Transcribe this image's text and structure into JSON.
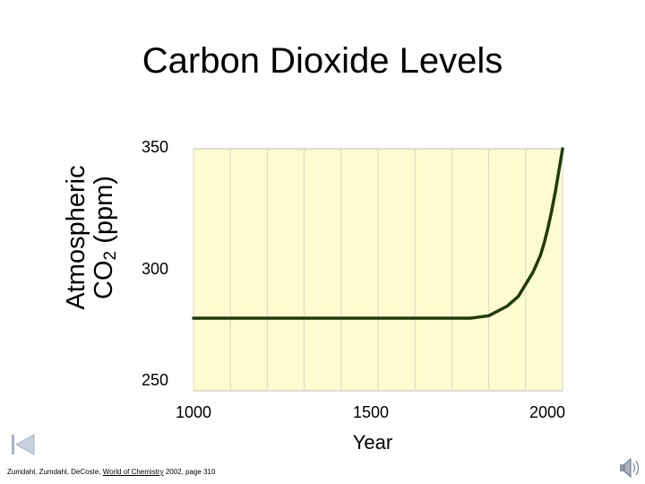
{
  "slide": {
    "title": "Carbon Dioxide Levels",
    "citation": {
      "prefix": "Zumdahl, Zumdahl, DeCoste, ",
      "book": "World of Chemistry",
      "suffix": "  2002, page 310"
    }
  },
  "chart_data": {
    "type": "line",
    "title": "Carbon Dioxide Levels",
    "ylabel_main": "Atmospheric",
    "ylabel_co": "CO",
    "ylabel_sub": "2",
    "ylabel_unit": " (ppm)",
    "xlabel": "Year",
    "xlim": [
      1000,
      2000
    ],
    "ylim": [
      250,
      350
    ],
    "xticks": [
      "1000",
      "1500",
      "2000"
    ],
    "yticks": [
      "350",
      "300",
      "250"
    ],
    "grid": true,
    "vertical_grid_years": [
      1000,
      1100,
      1200,
      1300,
      1400,
      1500,
      1600,
      1700,
      1800,
      1900,
      2000
    ],
    "colors": {
      "plot_background": "#fdfbd0",
      "line": "#1f3b0c",
      "grid": "#d8d8c8"
    },
    "series": [
      {
        "x": [
          1000,
          1100,
          1200,
          1300,
          1400,
          1500,
          1600,
          1700,
          1750,
          1800,
          1850,
          1880,
          1900,
          1920,
          1940,
          1950,
          1960,
          1970,
          1980,
          1990,
          2000
        ],
        "values": [
          280,
          280,
          280,
          280,
          280,
          280,
          280,
          280,
          280,
          281,
          285,
          289,
          294,
          299,
          306,
          311,
          317,
          324,
          332,
          341,
          350
        ]
      }
    ]
  }
}
